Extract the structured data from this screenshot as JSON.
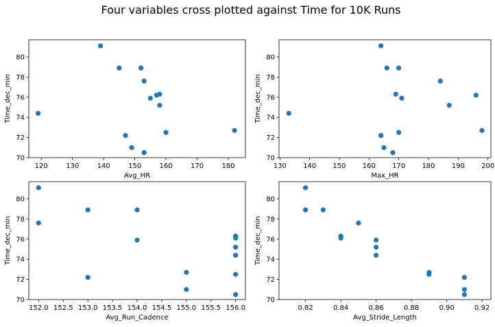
{
  "figure": {
    "title": "Four variables cross plotted against Time for 10K Runs",
    "marker_color": "#1f77b4"
  },
  "chart_data": [
    {
      "type": "scatter",
      "xlabel": "Avg_HR",
      "ylabel": "Time_dec_min",
      "xlim": [
        116,
        185.5
      ],
      "ylim": [
        70,
        81.7
      ],
      "xticks": [
        120,
        130,
        140,
        150,
        160,
        170,
        180
      ],
      "xtick_labels": [
        "120",
        "130",
        "140",
        "150",
        "160",
        "170",
        "180"
      ],
      "yticks": [
        70,
        72,
        74,
        76,
        78,
        80
      ],
      "ytick_labels": [
        "70",
        "72",
        "74",
        "76",
        "78",
        "80"
      ],
      "grid": false,
      "points": [
        {
          "x": 119,
          "y": 74.4
        },
        {
          "x": 139,
          "y": 81.1
        },
        {
          "x": 145,
          "y": 78.9
        },
        {
          "x": 152,
          "y": 78.9
        },
        {
          "x": 153,
          "y": 77.6
        },
        {
          "x": 155,
          "y": 75.9
        },
        {
          "x": 157,
          "y": 76.2
        },
        {
          "x": 158,
          "y": 76.3
        },
        {
          "x": 158,
          "y": 75.2
        },
        {
          "x": 147,
          "y": 72.2
        },
        {
          "x": 149,
          "y": 71.0
        },
        {
          "x": 153,
          "y": 70.5
        },
        {
          "x": 160,
          "y": 72.5
        },
        {
          "x": 182,
          "y": 72.7
        }
      ]
    },
    {
      "type": "scatter",
      "xlabel": "Max_HR",
      "ylabel": "Time_dec_min",
      "xlim": [
        129.7,
        201
      ],
      "ylim": [
        70,
        81.7
      ],
      "xticks": [
        130,
        140,
        150,
        160,
        170,
        180,
        190,
        200
      ],
      "xtick_labels": [
        "130",
        "140",
        "150",
        "160",
        "170",
        "180",
        "190",
        "200"
      ],
      "yticks": [
        70,
        72,
        74,
        76,
        78,
        80
      ],
      "ytick_labels": [
        "70",
        "72",
        "74",
        "76",
        "78",
        "80"
      ],
      "grid": false,
      "points": [
        {
          "x": 133,
          "y": 74.4
        },
        {
          "x": 164,
          "y": 81.1
        },
        {
          "x": 166,
          "y": 78.9
        },
        {
          "x": 170,
          "y": 78.9
        },
        {
          "x": 184,
          "y": 77.6
        },
        {
          "x": 169,
          "y": 76.3
        },
        {
          "x": 171,
          "y": 75.9
        },
        {
          "x": 196,
          "y": 76.2
        },
        {
          "x": 187,
          "y": 75.2
        },
        {
          "x": 164,
          "y": 72.2
        },
        {
          "x": 165,
          "y": 71.0
        },
        {
          "x": 168,
          "y": 70.5
        },
        {
          "x": 170,
          "y": 72.5
        },
        {
          "x": 198,
          "y": 72.7
        }
      ]
    },
    {
      "type": "scatter",
      "xlabel": "Avg_Run_Cadence",
      "ylabel": "Time_dec_min",
      "xlim": [
        151.8,
        156.2
      ],
      "ylim": [
        70,
        81.7
      ],
      "xticks": [
        152.0,
        152.5,
        153.0,
        153.5,
        154.0,
        154.5,
        155.0,
        155.5,
        156.0
      ],
      "xtick_labels": [
        "152.0",
        "152.5",
        "153.0",
        "153.5",
        "154.0",
        "154.5",
        "155.0",
        "155.5",
        "156.0"
      ],
      "yticks": [
        70,
        72,
        74,
        76,
        78,
        80
      ],
      "ytick_labels": [
        "70",
        "72",
        "74",
        "76",
        "78",
        "80"
      ],
      "grid": false,
      "points": [
        {
          "x": 152,
          "y": 81.1
        },
        {
          "x": 152,
          "y": 77.6
        },
        {
          "x": 153,
          "y": 78.9
        },
        {
          "x": 154,
          "y": 78.9
        },
        {
          "x": 154,
          "y": 75.9
        },
        {
          "x": 153,
          "y": 72.2
        },
        {
          "x": 155,
          "y": 72.7
        },
        {
          "x": 155,
          "y": 71.0
        },
        {
          "x": 156,
          "y": 76.3
        },
        {
          "x": 156,
          "y": 76.1
        },
        {
          "x": 156,
          "y": 75.2
        },
        {
          "x": 156,
          "y": 74.4
        },
        {
          "x": 156,
          "y": 72.5
        },
        {
          "x": 156,
          "y": 70.5
        }
      ]
    },
    {
      "type": "scatter",
      "xlabel": "Avg_Stride_Length",
      "ylabel": "Time_dec_min",
      "xlim": [
        0.805,
        0.925
      ],
      "ylim": [
        70,
        81.7
      ],
      "xticks": [
        0.82,
        0.84,
        0.86,
        0.88,
        0.9,
        0.92
      ],
      "xtick_labels": [
        "0.82",
        "0.84",
        "0.86",
        "0.88",
        "0.90",
        "0.92"
      ],
      "yticks": [
        70,
        72,
        74,
        76,
        78,
        80
      ],
      "ytick_labels": [
        "70",
        "72",
        "74",
        "76",
        "78",
        "80"
      ],
      "grid": false,
      "points": [
        {
          "x": 0.82,
          "y": 81.1
        },
        {
          "x": 0.82,
          "y": 78.9
        },
        {
          "x": 0.83,
          "y": 78.9
        },
        {
          "x": 0.85,
          "y": 77.6
        },
        {
          "x": 0.84,
          "y": 76.3
        },
        {
          "x": 0.84,
          "y": 76.1
        },
        {
          "x": 0.86,
          "y": 75.9
        },
        {
          "x": 0.86,
          "y": 75.2
        },
        {
          "x": 0.86,
          "y": 74.4
        },
        {
          "x": 0.89,
          "y": 72.7
        },
        {
          "x": 0.89,
          "y": 72.5
        },
        {
          "x": 0.91,
          "y": 72.2
        },
        {
          "x": 0.91,
          "y": 71.0
        },
        {
          "x": 0.91,
          "y": 70.5
        }
      ]
    }
  ]
}
